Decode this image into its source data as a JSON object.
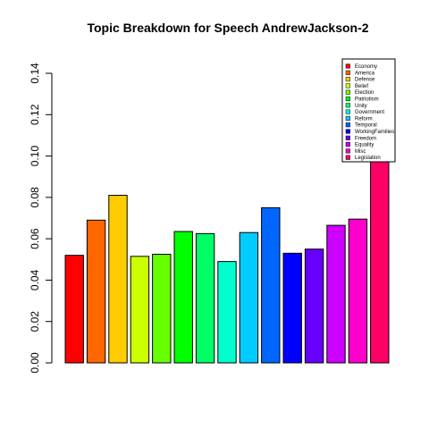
{
  "chart_data": {
    "type": "bar",
    "title": "Topic Breakdown for Speech AndrewJackson-2",
    "xlabel": "",
    "ylabel": "",
    "ylim": [
      0,
      0.14
    ],
    "yticks": [
      0.0,
      0.02,
      0.04,
      0.06,
      0.08,
      0.1,
      0.12,
      0.14
    ],
    "ytick_labels": [
      "0.00",
      "0.02",
      "0.04",
      "0.06",
      "0.08",
      "0.10",
      "0.12",
      "0.14"
    ],
    "grid": false,
    "legend_position": "top-right",
    "categories": [
      "Economy",
      "America",
      "Defense",
      "Belief",
      "Election",
      "Patriotism",
      "Unity",
      "Government",
      "Reform",
      "Temporal",
      "WorkingFamilies",
      "Freedom",
      "Equality",
      "Misc",
      "Legislation"
    ],
    "values": [
      0.052,
      0.069,
      0.081,
      0.0515,
      0.0525,
      0.0635,
      0.0625,
      0.049,
      0.063,
      0.075,
      0.053,
      0.055,
      0.0665,
      0.0695,
      0.107
    ],
    "colors": [
      "#FF0000",
      "#FF6600",
      "#FFCC00",
      "#CCFF00",
      "#66FF00",
      "#00FF00",
      "#00FF66",
      "#00FFCC",
      "#00CCFF",
      "#0066FF",
      "#0000FF",
      "#6600FF",
      "#CC00FF",
      "#FF00CC",
      "#FF0066"
    ]
  }
}
